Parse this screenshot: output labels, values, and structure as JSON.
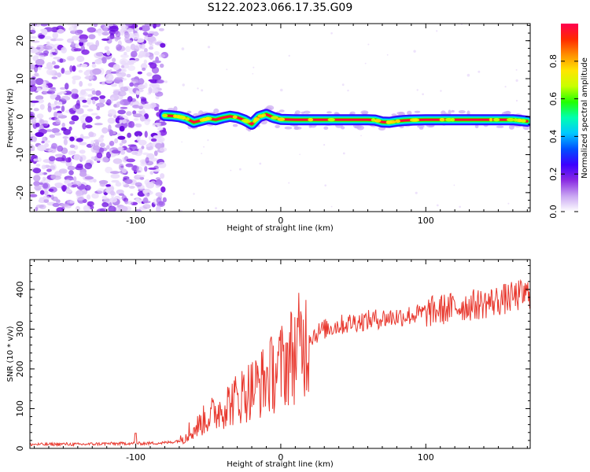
{
  "title": "S122.2023.066.17.35.G09",
  "chart_data": [
    {
      "type": "heatmap",
      "xlabel": "Height of straight line (km)",
      "ylabel": "Frequency (Hz)",
      "xlim": [
        -173,
        172
      ],
      "ylim": [
        -25,
        24.5
      ],
      "xticks": [
        -100,
        0,
        100
      ],
      "yticks": [
        -20,
        -10,
        0,
        10,
        20
      ],
      "signal_start_x": -80,
      "trace": {
        "x": [
          -80,
          -75,
          -70,
          -65,
          -60,
          -55,
          -50,
          -45,
          -40,
          -35,
          -30,
          -25,
          -20,
          -18,
          -15,
          -10,
          -5,
          0,
          10,
          20,
          30,
          40,
          50,
          60,
          65,
          70,
          75,
          80,
          85,
          90,
          100,
          110,
          120,
          130,
          140,
          150,
          160,
          165,
          170
        ],
        "y": [
          0.3,
          0.2,
          0.0,
          -0.5,
          -1.5,
          -1.0,
          -0.5,
          -0.8,
          -0.3,
          0.1,
          -0.2,
          -0.9,
          -2.0,
          -1.2,
          0.0,
          0.6,
          -0.2,
          -0.7,
          -0.8,
          -0.8,
          -0.8,
          -0.8,
          -0.8,
          -0.8,
          -0.9,
          -1.4,
          -1.5,
          -1.2,
          -1.0,
          -0.9,
          -0.8,
          -0.8,
          -0.8,
          -0.8,
          -0.8,
          -0.8,
          -0.8,
          -1.0,
          -1.2
        ]
      },
      "colorbar": {
        "label": "Normalized spectral amplitude",
        "range": [
          0,
          1
        ],
        "ticks": [
          0.0,
          0.2,
          0.4,
          0.6,
          0.8
        ],
        "tick_labels": [
          "0.0",
          "0.2",
          "0.4",
          "0.6",
          "0.8"
        ],
        "colors": [
          "#ffffff",
          "#c9a6f2",
          "#8a2be2",
          "#3b00ff",
          "#0050ff",
          "#00c8ff",
          "#00ffb0",
          "#22ff00",
          "#c8ff00",
          "#ffe600",
          "#ff9000",
          "#ff2a00",
          "#ff0050"
        ]
      }
    },
    {
      "type": "line",
      "xlabel": "Height of straight line (km)",
      "ylabel": "SNR (10 * v/v)",
      "xlim": [
        -173,
        172
      ],
      "ylim": [
        0,
        475
      ],
      "xticks": [
        -100,
        0,
        100
      ],
      "yticks": [
        0,
        100,
        200,
        300,
        400
      ],
      "color": "#e8392f",
      "series": [
        {
          "x": [
            -173,
            -160,
            -150,
            -140,
            -130,
            -120,
            -110,
            -105,
            -100,
            -90,
            -80,
            -75,
            -70,
            -65,
            -60,
            -55,
            -50,
            -45,
            -40,
            -35,
            -30,
            -25,
            -20,
            -15,
            -10,
            -5,
            0,
            5,
            10,
            15,
            20,
            25,
            30,
            35,
            40,
            45,
            50,
            55,
            60,
            65,
            70,
            75,
            80,
            85,
            90,
            95,
            100,
            105,
            110,
            115,
            120,
            125,
            130,
            135,
            140,
            145,
            150,
            155,
            160,
            165,
            172
          ],
          "values": [
            10,
            10,
            11,
            10,
            11,
            12,
            12,
            13,
            12,
            13,
            14,
            16,
            20,
            30,
            45,
            65,
            80,
            90,
            105,
            115,
            125,
            140,
            150,
            160,
            175,
            190,
            205,
            225,
            245,
            265,
            280,
            290,
            300,
            305,
            310,
            313,
            318,
            320,
            322,
            325,
            327,
            329,
            331,
            333,
            335,
            338,
            342,
            345,
            348,
            352,
            355,
            358,
            360,
            362,
            365,
            368,
            372,
            376,
            380,
            385,
            390
          ]
        }
      ]
    }
  ]
}
